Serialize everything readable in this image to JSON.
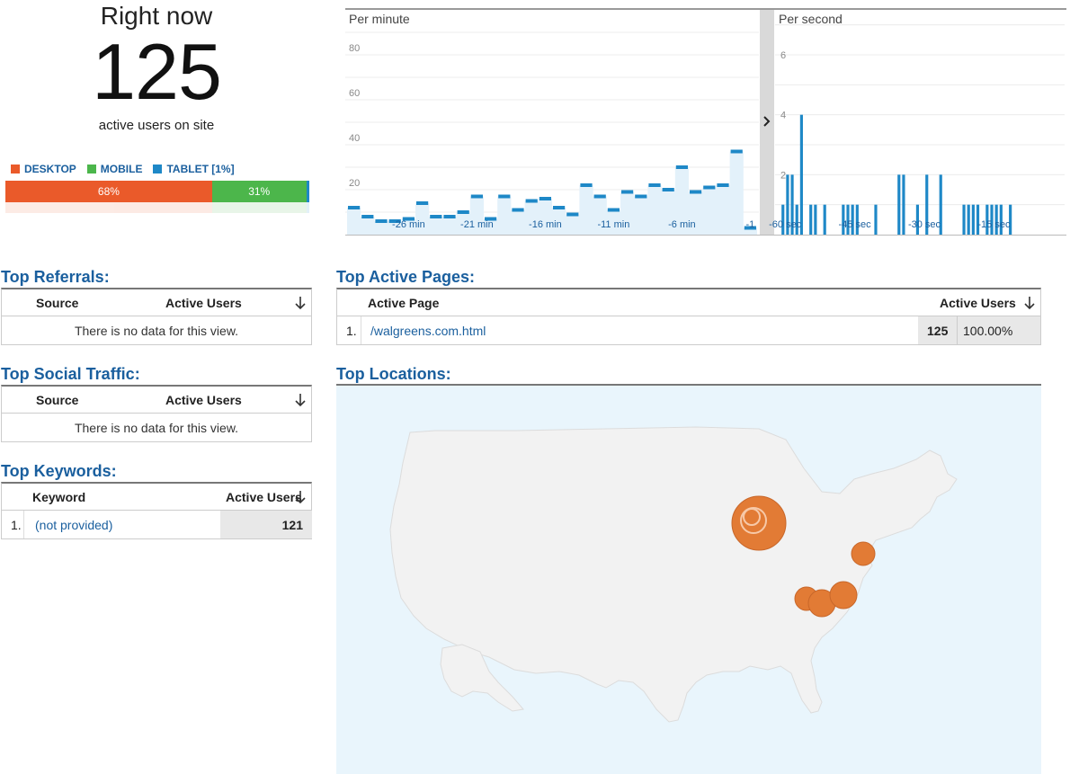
{
  "right_now": {
    "title": "Right now",
    "count": "125",
    "subtitle": "active users on site",
    "legend": [
      {
        "label": "DESKTOP",
        "color": "#ea5a2a"
      },
      {
        "label": "MOBILE",
        "color": "#4cb64b"
      },
      {
        "label": "TABLET [1%]",
        "color": "#1e88c7"
      }
    ],
    "split": [
      {
        "label": "68%",
        "percent": 68,
        "color": "#ea5a2a"
      },
      {
        "label": "31%",
        "percent": 31,
        "color": "#4cb64b"
      },
      {
        "label": "",
        "percent": 1,
        "color": "#1e88c7"
      }
    ]
  },
  "pageviews": {
    "per_minute_label": "Per minute",
    "per_second_label": "Per second",
    "expand_icon": "chevron-right-icon"
  },
  "chart_data": [
    {
      "type": "bar",
      "title": "Per minute",
      "yticks": [
        20,
        40,
        60,
        80
      ],
      "ylim": [
        0,
        100
      ],
      "xticks": [
        "-26 min",
        "-21 min",
        "-16 min",
        "-11 min",
        "-6 min",
        "-1"
      ],
      "x": [
        -30,
        -29,
        -28,
        -27,
        -26,
        -25,
        -24,
        -23,
        -22,
        -21,
        -20,
        -19,
        -18,
        -17,
        -16,
        -15,
        -14,
        -13,
        -12,
        -11,
        -10,
        -9,
        -8,
        -7,
        -6,
        -5,
        -4,
        -3,
        -2,
        -1
      ],
      "values": [
        12,
        8,
        6,
        6,
        7,
        14,
        8,
        8,
        10,
        17,
        7,
        17,
        11,
        15,
        16,
        12,
        9,
        22,
        17,
        11,
        19,
        17,
        22,
        20,
        30,
        19,
        21,
        22,
        37,
        3
      ],
      "color": "#1e88c7"
    },
    {
      "type": "bar",
      "title": "Per second",
      "yticks": [
        2,
        4,
        6
      ],
      "ylim": [
        0,
        7.5
      ],
      "xticks": [
        "-60 sec",
        "-45 sec",
        "-30 sec",
        "-15 sec"
      ],
      "x": [
        -60,
        -59,
        -58,
        -57,
        -56,
        -54,
        -53,
        -51,
        -47,
        -46,
        -45,
        -44,
        -40,
        -35,
        -34,
        -31,
        -29,
        -26,
        -21,
        -20,
        -19,
        -18,
        -16,
        -15,
        -14,
        -13,
        -11
      ],
      "values": [
        1,
        2,
        2,
        1,
        4,
        1,
        1,
        1,
        1,
        1,
        1,
        1,
        1,
        2,
        2,
        1,
        2,
        2,
        1,
        1,
        1,
        1,
        1,
        1,
        1,
        1,
        1
      ],
      "color": "#1e88c7"
    }
  ],
  "top_referrals": {
    "title": "Top Referrals:",
    "col_source": "Source",
    "col_users": "Active Users",
    "empty": "There is no data for this view."
  },
  "top_social": {
    "title": "Top Social Traffic:",
    "col_source": "Source",
    "col_users": "Active Users",
    "empty": "There is no data for this view."
  },
  "top_keywords": {
    "title": "Top Keywords:",
    "col_keyword": "Keyword",
    "col_users": "Active Users",
    "rows": [
      {
        "index": "1.",
        "keyword": "(not provided)",
        "users": "121"
      }
    ]
  },
  "top_pages": {
    "title": "Top Active Pages:",
    "col_page": "Active Page",
    "col_users": "Active Users",
    "rows": [
      {
        "index": "1.",
        "page": "/walgreens.com.html",
        "users": "125",
        "percent": "100.00%"
      }
    ]
  },
  "top_locations": {
    "title": "Top Locations:",
    "bubble_color": "#e27b35",
    "map_land_color": "#f2f2f2"
  }
}
